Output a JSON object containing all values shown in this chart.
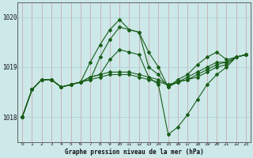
{
  "bg_color": "#cce8e8",
  "line_color": "#1a5e1a",
  "xlabel": "Graphe pression niveau de la mer (hPa)",
  "ylim": [
    1017.5,
    1020.3
  ],
  "xlim": [
    -0.5,
    23.5
  ],
  "yticks": [
    1018,
    1019,
    1020
  ],
  "xticks": [
    0,
    1,
    2,
    3,
    4,
    5,
    6,
    7,
    8,
    9,
    10,
    11,
    12,
    13,
    14,
    15,
    16,
    17,
    18,
    19,
    20,
    21,
    22,
    23
  ],
  "series": [
    [
      1018.0,
      1018.55,
      1018.75,
      1018.75,
      1018.6,
      1018.65,
      1018.7,
      1019.1,
      1019.45,
      1019.75,
      1019.95,
      1019.75,
      1019.7,
      1019.0,
      1018.85,
      1018.6,
      1018.75,
      1018.85,
      1019.05,
      1019.2,
      1019.3,
      1019.15,
      1019.2,
      1019.25
    ],
    [
      1018.0,
      1018.55,
      1018.75,
      1018.75,
      1018.6,
      1018.65,
      1018.7,
      1018.8,
      1018.85,
      1019.15,
      1019.35,
      1019.3,
      1019.25,
      1018.8,
      1018.65,
      1017.65,
      1017.8,
      1018.05,
      1018.35,
      1018.65,
      1018.85,
      1019.0,
      1019.2,
      1019.25
    ],
    [
      1018.0,
      1018.55,
      1018.75,
      1018.75,
      1018.6,
      1018.65,
      1018.7,
      1018.75,
      1018.8,
      1018.85,
      1018.85,
      1018.85,
      1018.8,
      1018.75,
      1018.7,
      1018.65,
      1018.7,
      1018.75,
      1018.85,
      1018.95,
      1019.05,
      1019.1,
      1019.2,
      1019.25
    ],
    [
      1018.0,
      1018.55,
      1018.75,
      1018.75,
      1018.6,
      1018.65,
      1018.7,
      1018.8,
      1018.85,
      1018.9,
      1018.9,
      1018.9,
      1018.85,
      1018.8,
      1018.75,
      1018.65,
      1018.7,
      1018.75,
      1018.8,
      1018.9,
      1019.0,
      1019.05,
      1019.2,
      1019.25
    ],
    [
      1018.0,
      1018.55,
      1018.75,
      1018.75,
      1018.6,
      1018.65,
      1018.7,
      1018.75,
      1019.2,
      1019.55,
      1019.8,
      1019.75,
      1019.7,
      1019.3,
      1019.0,
      1018.6,
      1018.7,
      1018.8,
      1018.9,
      1019.0,
      1019.1,
      1019.1,
      1019.2,
      1019.25
    ]
  ]
}
